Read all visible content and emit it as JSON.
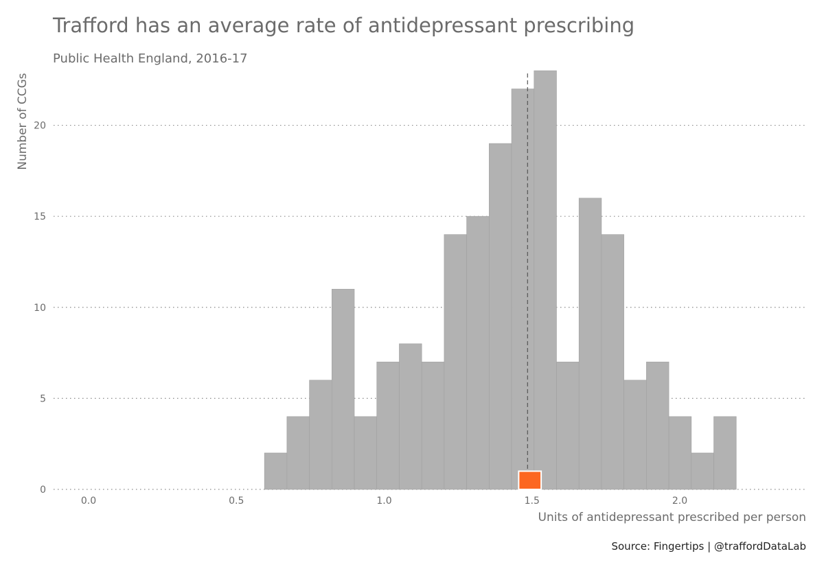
{
  "chart_data": {
    "type": "bar",
    "title": "Trafford has an average rate of antidepressant prescribing",
    "subtitle": "Public Health England, 2016-17",
    "xlabel": "Units of antidepressant prescribed per person",
    "ylabel": "Number of CCGs",
    "caption": "Source: Fingertips  |  @traffordDataLab",
    "xlim": [
      -0.12,
      2.42
    ],
    "ylim": [
      0,
      23
    ],
    "x_ticks": [
      {
        "value": 0.0,
        "label": "0.0"
      },
      {
        "value": 0.5,
        "label": "0.5"
      },
      {
        "value": 1.0,
        "label": "1.0"
      },
      {
        "value": 1.5,
        "label": "1.5"
      },
      {
        "value": 2.0,
        "label": "2.0"
      }
    ],
    "y_ticks": [
      {
        "value": 0,
        "label": "0"
      },
      {
        "value": 5,
        "label": "5"
      },
      {
        "value": 10,
        "label": "10"
      },
      {
        "value": 15,
        "label": "15"
      },
      {
        "value": 20,
        "label": "20"
      }
    ],
    "grid": "horizontal dotted",
    "bin_width": 0.076,
    "bins": [
      {
        "x_start": 0.595,
        "count": 2
      },
      {
        "x_start": 0.671,
        "count": 4
      },
      {
        "x_start": 0.747,
        "count": 6
      },
      {
        "x_start": 0.823,
        "count": 11
      },
      {
        "x_start": 0.899,
        "count": 4
      },
      {
        "x_start": 0.975,
        "count": 7
      },
      {
        "x_start": 1.051,
        "count": 8
      },
      {
        "x_start": 1.127,
        "count": 7
      },
      {
        "x_start": 1.203,
        "count": 14
      },
      {
        "x_start": 1.279,
        "count": 15
      },
      {
        "x_start": 1.355,
        "count": 19
      },
      {
        "x_start": 1.431,
        "count": 22
      },
      {
        "x_start": 1.507,
        "count": 23
      },
      {
        "x_start": 1.583,
        "count": 7
      },
      {
        "x_start": 1.659,
        "count": 16
      },
      {
        "x_start": 1.735,
        "count": 14
      },
      {
        "x_start": 1.811,
        "count": 6
      },
      {
        "x_start": 1.887,
        "count": 7
      },
      {
        "x_start": 1.963,
        "count": 4
      },
      {
        "x_start": 2.039,
        "count": 2
      },
      {
        "x_start": 2.115,
        "count": 4
      }
    ],
    "highlight": {
      "name": "Trafford",
      "x_start": 1.455,
      "x_end": 1.531,
      "count": 1,
      "color": "#fc6721"
    },
    "reference_line": {
      "x": 1.485,
      "style": "dashed"
    },
    "colors": {
      "bar": "#b2b2b2",
      "bar_stroke": "#a0a0a0",
      "highlight": "#fc6721",
      "text": "#6b6b6b",
      "grid": "#8a8a8a",
      "reference": "#555555"
    }
  }
}
